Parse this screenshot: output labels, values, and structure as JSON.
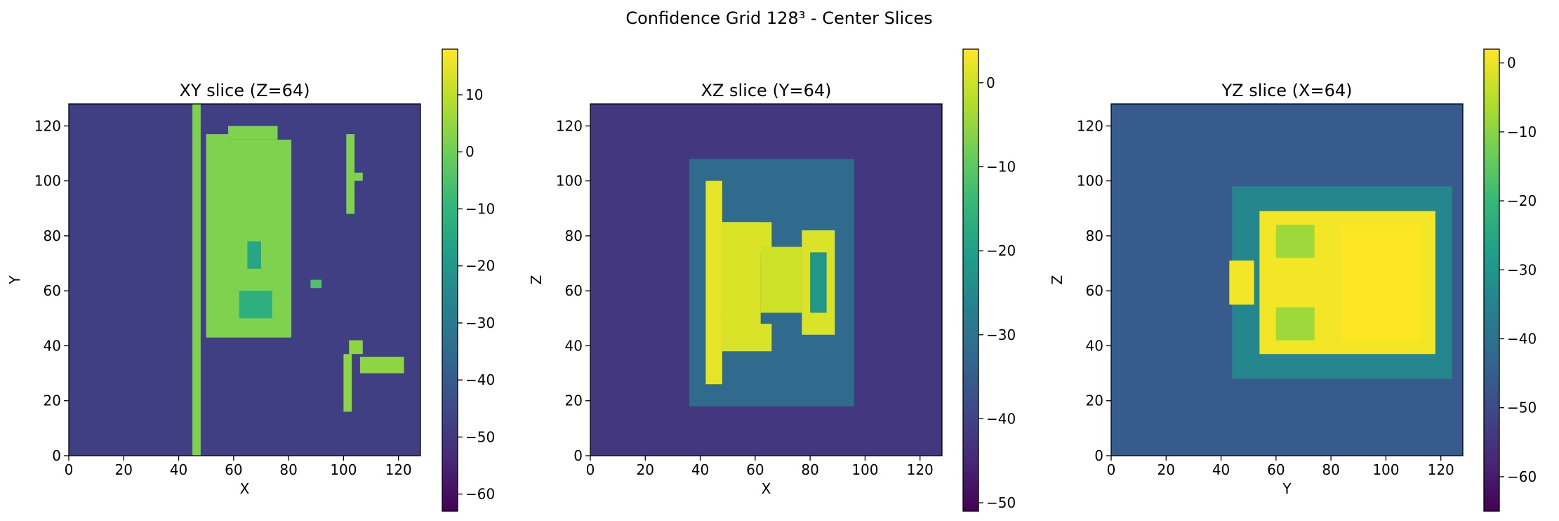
{
  "figure": {
    "title": "Confidence Grid 128³ - Center Slices"
  },
  "colormap": [
    "#440154",
    "#482878",
    "#3e4a89",
    "#31688e",
    "#26828e",
    "#1f9e89",
    "#35b779",
    "#6ece58",
    "#b5de2b",
    "#fde725"
  ],
  "chart_data": [
    {
      "type": "heatmap",
      "title": "XY slice (Z=64)",
      "xlabel": "X",
      "ylabel": "Y",
      "xlim": [
        0,
        128
      ],
      "ylim": [
        0,
        128
      ],
      "xticks": [
        0,
        20,
        40,
        60,
        80,
        100,
        120
      ],
      "yticks": [
        0,
        20,
        40,
        60,
        80,
        100,
        120
      ],
      "colorbar": {
        "vmin": -63,
        "vmax": 18,
        "ticks": [
          10,
          0,
          -10,
          -20,
          -30,
          -40,
          -50,
          -60
        ]
      },
      "background": -48,
      "regions": [
        {
          "shape": "rect",
          "x0": 45,
          "x1": 48,
          "y0": 0,
          "y1": 128,
          "value": 2
        },
        {
          "shape": "rect",
          "x0": 50,
          "x1": 58,
          "y0": 43,
          "y1": 117,
          "value": 2
        },
        {
          "shape": "rect",
          "x0": 58,
          "x1": 81,
          "y0": 43,
          "y1": 115,
          "value": 2
        },
        {
          "shape": "rect",
          "x0": 58,
          "x1": 76,
          "y0": 115,
          "y1": 120,
          "value": 2
        },
        {
          "shape": "rect",
          "x0": 65,
          "x1": 70,
          "y0": 68,
          "y1": 78,
          "value": -15
        },
        {
          "shape": "rect",
          "x0": 62,
          "x1": 74,
          "y0": 50,
          "y1": 60,
          "value": -12
        },
        {
          "shape": "rect",
          "x0": 101,
          "x1": 104,
          "y0": 88,
          "y1": 117,
          "value": 2
        },
        {
          "shape": "rect",
          "x0": 103,
          "x1": 107,
          "y0": 100,
          "y1": 103,
          "value": 2
        },
        {
          "shape": "rect",
          "x0": 100,
          "x1": 103,
          "y0": 16,
          "y1": 37,
          "value": 4
        },
        {
          "shape": "rect",
          "x0": 102,
          "x1": 107,
          "y0": 37,
          "y1": 42,
          "value": 4
        },
        {
          "shape": "rect",
          "x0": 106,
          "x1": 122,
          "y0": 30,
          "y1": 36,
          "value": 4
        },
        {
          "shape": "rect",
          "x0": 88,
          "x1": 92,
          "y0": 61,
          "y1": 64,
          "value": -5
        }
      ]
    },
    {
      "type": "heatmap",
      "title": "XZ slice (Y=64)",
      "xlabel": "X",
      "ylabel": "Z",
      "xlim": [
        0,
        128
      ],
      "ylim": [
        0,
        128
      ],
      "xticks": [
        0,
        20,
        40,
        60,
        80,
        100,
        120
      ],
      "yticks": [
        0,
        20,
        40,
        60,
        80,
        100,
        120
      ],
      "colorbar": {
        "vmin": -51,
        "vmax": 4,
        "ticks": [
          0,
          -10,
          -20,
          -30,
          -40,
          -50
        ]
      },
      "background": -42,
      "regions": [
        {
          "shape": "rect",
          "x0": 36,
          "x1": 96,
          "y0": 18,
          "y1": 108,
          "value": -32
        },
        {
          "shape": "rect",
          "x0": 42,
          "x1": 48,
          "y0": 26,
          "y1": 100,
          "value": 2
        },
        {
          "shape": "rect",
          "x0": 48,
          "x1": 62,
          "y0": 42,
          "y1": 85,
          "value": 1
        },
        {
          "shape": "rect",
          "x0": 48,
          "x1": 66,
          "y0": 74,
          "y1": 85,
          "value": 1
        },
        {
          "shape": "rect",
          "x0": 48,
          "x1": 66,
          "y0": 38,
          "y1": 48,
          "value": 1
        },
        {
          "shape": "rect",
          "x0": 62,
          "x1": 77,
          "y0": 52,
          "y1": 76,
          "value": 0
        },
        {
          "shape": "rect",
          "x0": 77,
          "x1": 89,
          "y0": 44,
          "y1": 82,
          "value": 1
        },
        {
          "shape": "rect",
          "x0": 80,
          "x1": 86,
          "y0": 52,
          "y1": 74,
          "value": -22
        }
      ]
    },
    {
      "type": "heatmap",
      "title": "YZ slice (X=64)",
      "xlabel": "Y",
      "ylabel": "Z",
      "xlim": [
        0,
        128
      ],
      "ylim": [
        0,
        128
      ],
      "xticks": [
        0,
        20,
        40,
        60,
        80,
        100,
        120
      ],
      "yticks": [
        0,
        20,
        40,
        60,
        80,
        100,
        120
      ],
      "colorbar": {
        "vmin": -65,
        "vmax": 2,
        "ticks": [
          0,
          -10,
          -20,
          -30,
          -40,
          -50,
          -60
        ]
      },
      "background": -46,
      "regions": [
        {
          "shape": "rect",
          "x0": 44,
          "x1": 124,
          "y0": 28,
          "y1": 98,
          "value": -34
        },
        {
          "shape": "rect",
          "x0": 43,
          "x1": 52,
          "y0": 55,
          "y1": 71,
          "value": 1
        },
        {
          "shape": "rect",
          "x0": 54,
          "x1": 118,
          "y0": 37,
          "y1": 89,
          "value": 1
        },
        {
          "shape": "rect",
          "x0": 60,
          "x1": 74,
          "y0": 72,
          "y1": 84,
          "value": -8
        },
        {
          "shape": "rect",
          "x0": 60,
          "x1": 74,
          "y0": 42,
          "y1": 54,
          "value": -8
        },
        {
          "shape": "rect",
          "x0": 84,
          "x1": 112,
          "y0": 42,
          "y1": 84,
          "value": 2
        }
      ]
    }
  ]
}
